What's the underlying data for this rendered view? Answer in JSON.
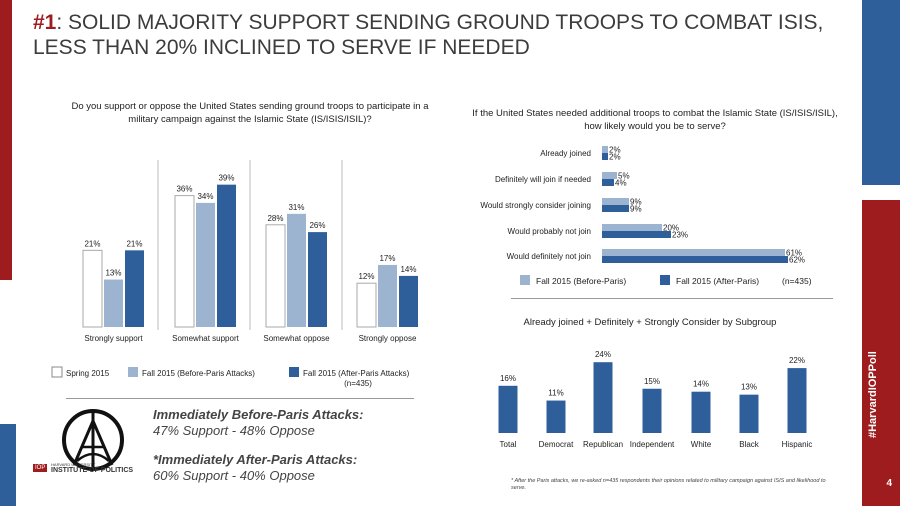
{
  "title": {
    "highlight": "#1",
    "text": ": SOLID MAJORITY SUPPORT SENDING GROUND TROOPS TO COMBAT ISIS, LESS THAN 20% INCLINED TO SERVE IF NEEDED"
  },
  "sidebar": {
    "hashtag": "#HarvardIOPPoll",
    "page": "4"
  },
  "colors": {
    "spring2015": "#ffffff",
    "before": "#9db4d0",
    "after": "#2e5f9a",
    "accent_red": "#9e1b1e"
  },
  "chart_data": [
    {
      "type": "bar",
      "title": "Do you support or oppose the United States sending ground troops to participate in a military campaign against the Islamic State (IS/ISIS/ISIL)?",
      "categories": [
        "Strongly support",
        "Somewhat support",
        "Somewhat oppose",
        "Strongly oppose"
      ],
      "series": [
        {
          "name": "Spring 2015",
          "values": [
            21,
            36,
            28,
            12
          ],
          "labels": [
            "21%",
            "36%",
            "28%",
            "12%"
          ]
        },
        {
          "name": "Fall 2015 (Before-Paris Attacks)",
          "values": [
            13,
            34,
            31,
            17
          ],
          "labels": [
            "13%",
            "34%",
            "31%",
            "17%"
          ]
        },
        {
          "name": "Fall 2015 (After-Paris Attacks)",
          "values": [
            21,
            39,
            26,
            14
          ],
          "labels": [
            "21%",
            "39%",
            "26%",
            "14%"
          ]
        }
      ],
      "legend_note": "(n=435)"
    },
    {
      "type": "bar",
      "orientation": "horizontal",
      "title": "If the United States needed additional troops to combat the Islamic State (IS/ISIS/ISIL), how likely would you be to serve?",
      "categories": [
        "Already joined",
        "Definitely will join if needed",
        "Would strongly consider joining",
        "Would probably not join",
        "Would definitely not join"
      ],
      "series": [
        {
          "name": "Fall 2015 (Before-Paris)",
          "values": [
            2,
            5,
            9,
            20,
            61
          ],
          "labels": [
            "2%",
            "5%",
            "9%",
            "20%",
            "61%"
          ]
        },
        {
          "name": "Fall 2015 (After-Paris)",
          "values": [
            2,
            4,
            9,
            23,
            62
          ],
          "labels": [
            "2%",
            "4%",
            "9%",
            "23%",
            "62%"
          ]
        }
      ],
      "legend_note": "(n=435)"
    },
    {
      "type": "bar",
      "title": "Already joined + Definitely + Strongly Consider by Subgroup",
      "categories": [
        "Total",
        "Democrat",
        "Republican",
        "Independent",
        "White",
        "Black",
        "Hispanic"
      ],
      "values": [
        16,
        11,
        24,
        15,
        14,
        13,
        22
      ],
      "labels": [
        "16%",
        "11%",
        "24%",
        "15%",
        "14%",
        "13%",
        "22%"
      ]
    }
  ],
  "annotation": {
    "before_heading": "Immediately Before-Paris Attacks:",
    "before_text": "47% Support - 48% Oppose",
    "after_heading": "*Immediately After-Paris Attacks:",
    "after_text": "60% Support - 40% Oppose"
  },
  "logo": {
    "mark": "IOP",
    "org_small": "HARVARD UNIVERSITY",
    "org": "INSTITUTE OF POLITICS"
  },
  "footnote": "* After the Paris attacks, we re-asked n=435 respondents their opinions related to military campaign against ISIS and likelihood to serve."
}
